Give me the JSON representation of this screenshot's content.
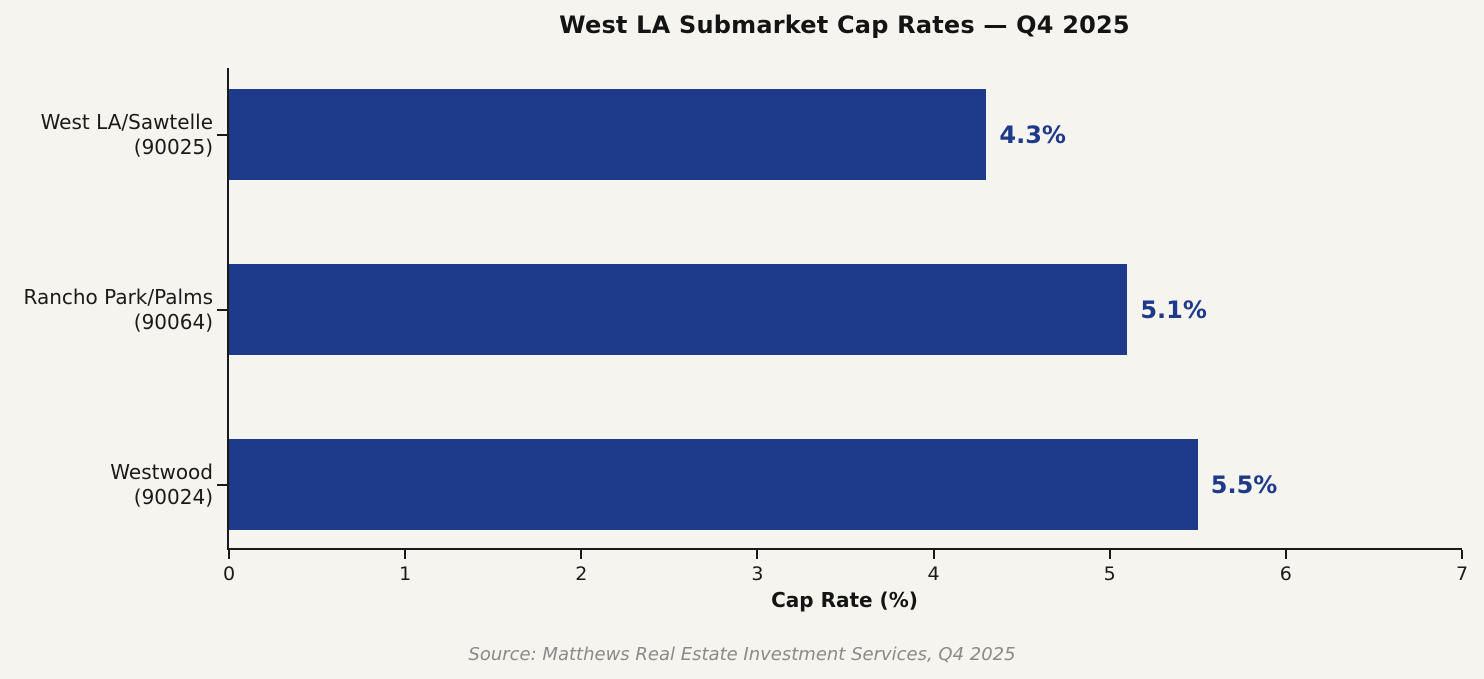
{
  "title": "West LA Submarket Cap Rates — Q4 2025",
  "source_note": "Source: Matthews Real Estate Investment Services, Q4 2025",
  "colors": {
    "background": "#f5f4ef",
    "bar": "#1e3a8a",
    "value_label": "#1e3a8a",
    "axis_text": "#1a1a1a",
    "source_text": "#8a8a8a"
  },
  "chart_data": {
    "type": "bar",
    "orientation": "horizontal",
    "title": "West LA Submarket Cap Rates — Q4 2025",
    "xlabel": "Cap Rate (%)",
    "ylabel": "",
    "xlim": [
      0,
      7
    ],
    "xticks": [
      "0",
      "1",
      "2",
      "3",
      "4",
      "5",
      "6",
      "7"
    ],
    "grid": false,
    "legend": false,
    "categories": [
      "West LA/Sawtelle (90025)",
      "Rancho Park/Palms (90064)",
      "Westwood (90024)"
    ],
    "category_lines": [
      [
        "West LA/Sawtelle",
        "(90025)"
      ],
      [
        "Rancho Park/Palms",
        "(90064)"
      ],
      [
        "Westwood",
        "(90024)"
      ]
    ],
    "values": [
      4.3,
      5.1,
      5.5
    ],
    "value_labels": [
      "4.3%",
      "5.1%",
      "5.5%"
    ]
  }
}
